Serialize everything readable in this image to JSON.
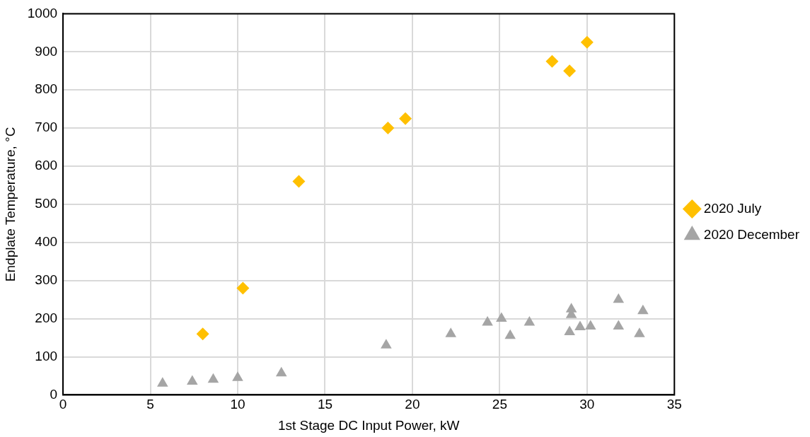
{
  "chart_data": {
    "type": "scatter",
    "xlabel": "1st Stage DC Input Power, kW",
    "ylabel": "Endplate Temperature, °C",
    "xlim": [
      0,
      35
    ],
    "xticks": [
      0,
      5,
      10,
      15,
      20,
      25,
      30,
      35
    ],
    "ylim": [
      0,
      1000
    ],
    "yticks": [
      0,
      100,
      200,
      300,
      400,
      500,
      600,
      700,
      800,
      900,
      1000
    ],
    "grid": true,
    "legend": "right",
    "series": [
      {
        "name": "2020 July",
        "color": "#ffc000",
        "marker": "diamond",
        "x": [
          8,
          10.3,
          13.5,
          18.6,
          19.6,
          28,
          29,
          30
        ],
        "values": [
          160,
          280,
          560,
          700,
          725,
          875,
          850,
          925
        ]
      },
      {
        "name": "2020 December",
        "color": "#a5a5a5",
        "marker": "triangle",
        "x": [
          5.7,
          7.4,
          8.6,
          10,
          12.5,
          18.5,
          22.2,
          24.3,
          25.1,
          25.6,
          26.7,
          29,
          29.1,
          29.1,
          29.6,
          30.2,
          31.8,
          31.8,
          33,
          33.2
        ],
        "values": [
          30,
          35,
          40,
          45,
          57,
          130,
          160,
          190,
          200,
          155,
          190,
          165,
          225,
          210,
          178,
          180,
          250,
          180,
          160,
          220
        ]
      }
    ]
  }
}
